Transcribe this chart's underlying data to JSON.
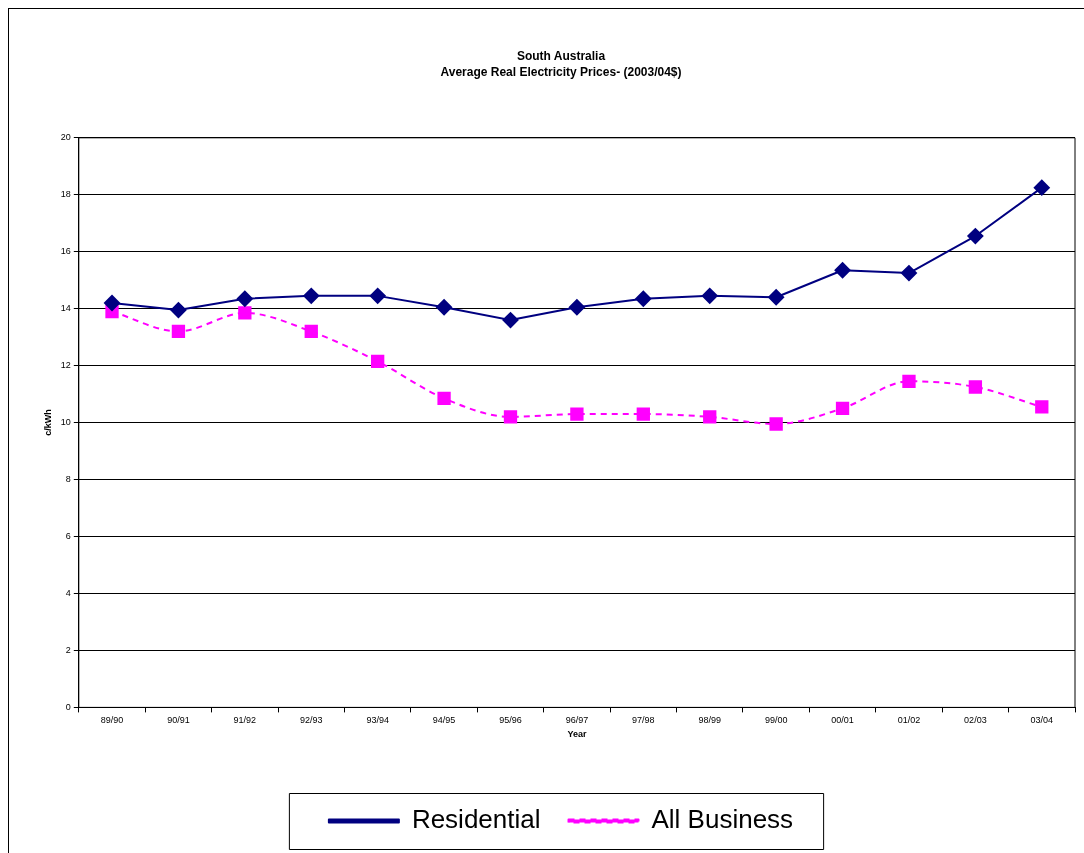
{
  "chart_data": {
    "type": "line",
    "title": "South Australia",
    "subtitle": "Average Real Electricity Prices- (2003/04$)",
    "xlabel": "Year",
    "ylabel": "c/kWh",
    "categories": [
      "89/90",
      "90/91",
      "91/92",
      "92/93",
      "93/94",
      "94/95",
      "95/96",
      "96/97",
      "97/98",
      "98/99",
      "99/00",
      "00/01",
      "01/02",
      "02/03",
      "03/04"
    ],
    "series": [
      {
        "name": "Residential",
        "color": "#000080",
        "marker": "diamond",
        "line_style": "solid",
        "values": [
          14.2,
          13.95,
          14.35,
          14.45,
          14.45,
          14.05,
          13.6,
          14.05,
          14.35,
          14.45,
          14.4,
          15.35,
          15.25,
          16.55,
          18.25
        ]
      },
      {
        "name": "All Business",
        "color": "#ff00ff",
        "marker": "square",
        "line_style": "dashed",
        "values": [
          13.9,
          13.2,
          13.85,
          13.2,
          12.15,
          10.85,
          10.2,
          10.3,
          10.3,
          10.2,
          9.95,
          10.5,
          11.45,
          11.25,
          10.55
        ]
      }
    ],
    "ylim": [
      0,
      20
    ],
    "yticks": [
      0,
      2,
      4,
      6,
      8,
      10,
      12,
      14,
      16,
      18,
      20
    ],
    "grid": "y",
    "legend": "bottom"
  }
}
